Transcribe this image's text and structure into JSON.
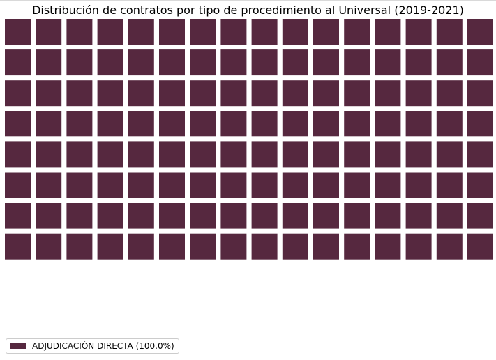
{
  "chart_data": {
    "type": "waffle",
    "title": "Distribución de contratos por tipo de procedimiento al Universal (2019-2021)",
    "rows": 8,
    "columns": 16,
    "series": [
      {
        "name": "ADJUDICACIÓN DIRECTA",
        "percent": 100.0,
        "color": "#56283f",
        "legend_label": "ADJUDICACIÓN DIRECTA (100.0%)"
      }
    ],
    "legend_position": "lower-left"
  }
}
